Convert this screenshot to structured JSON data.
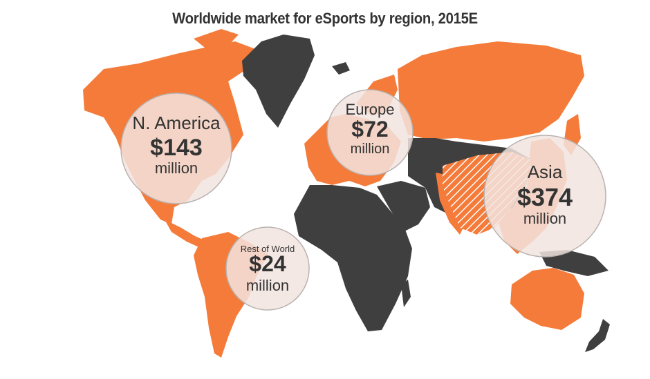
{
  "chart_data": {
    "type": "bubble-map",
    "title": "Worldwide market for eSports by region, 2015E",
    "unit": "million",
    "regions": [
      {
        "key": "na",
        "region": "N. America",
        "value": 143,
        "value_label": "$143"
      },
      {
        "key": "eu",
        "region": "Europe",
        "value": 72,
        "value_label": "$72"
      },
      {
        "key": "asia",
        "region": "Asia",
        "value": 374,
        "value_label": "$374"
      },
      {
        "key": "row",
        "region": "Rest of World",
        "value": 24,
        "value_label": "$24"
      }
    ]
  },
  "colors": {
    "highlight_land": "#F47B3A",
    "other_land": "#3F3F3F",
    "bubble_fill": "#F2E4DF",
    "bubble_stroke": "#B9B2AF",
    "text": "#333333"
  }
}
